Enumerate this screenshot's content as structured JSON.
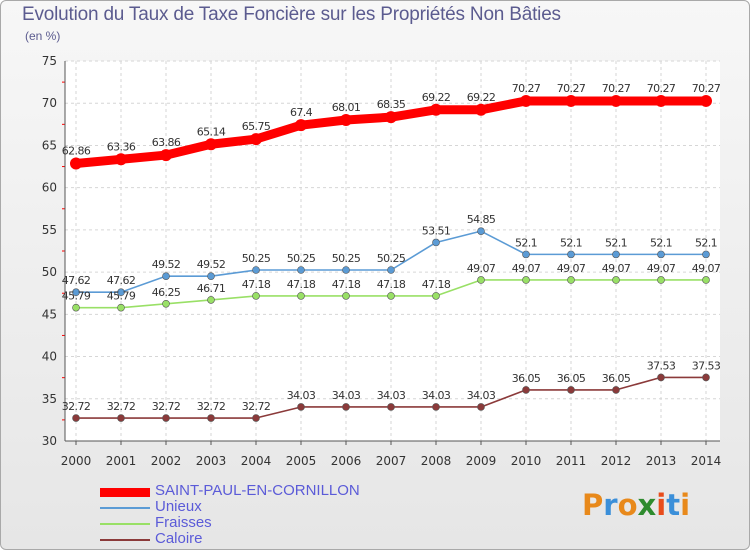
{
  "title": "Evolution du Taux de Taxe Foncière sur les Propriétés Non Bâties",
  "subtitle": "(en %)",
  "logo": {
    "text": "Proxiti",
    "colors": [
      "#e8891b",
      "#3b8fd9",
      "#e8891b",
      "#2e8b2e",
      "#e84c1b",
      "#3b8fd9",
      "#e8891b"
    ]
  },
  "chart_data": {
    "type": "line",
    "x": [
      "2000",
      "2001",
      "2002",
      "2003",
      "2004",
      "2005",
      "2006",
      "2007",
      "2008",
      "2009",
      "2010",
      "2011",
      "2012",
      "2013",
      "2014"
    ],
    "ylim": [
      30,
      75
    ],
    "yticks": [
      "30",
      "35",
      "40",
      "45",
      "50",
      "55",
      "60",
      "65",
      "70",
      "75"
    ],
    "grid": true,
    "legend": "bottom-left",
    "series": [
      {
        "name": "SAINT-PAUL-EN-CORNILLON",
        "color": "#ff0000",
        "values": [
          62.86,
          63.36,
          63.86,
          65.14,
          65.75,
          67.4,
          68.01,
          68.35,
          69.22,
          69.22,
          70.27,
          70.27,
          70.27,
          70.27,
          70.27
        ],
        "labels": [
          "62.86",
          "63.36",
          "63.86",
          "65.14",
          "65.75",
          "67.4",
          "68.01",
          "68.35",
          "69.22",
          "69.22",
          "70.27",
          "70.27",
          "70.27",
          "70.27",
          "70.27"
        ]
      },
      {
        "name": "Unieux",
        "color": "#5b9bd5",
        "values": [
          47.62,
          47.62,
          49.52,
          49.52,
          50.25,
          50.25,
          50.25,
          50.25,
          53.51,
          54.85,
          52.1,
          52.1,
          52.1,
          52.1,
          52.1
        ],
        "labels": [
          "47.62",
          "47.62",
          "49.52",
          "49.52",
          "50.25",
          "50.25",
          "50.25",
          "50.25",
          "53.51",
          "54.85",
          "52.1",
          "52.1",
          "52.1",
          "52.1",
          "52.1"
        ]
      },
      {
        "name": "Fraisses",
        "color": "#99e066",
        "values": [
          45.79,
          45.79,
          46.25,
          46.71,
          47.18,
          47.18,
          47.18,
          47.18,
          47.18,
          49.07,
          49.07,
          49.07,
          49.07,
          49.07,
          49.07
        ],
        "labels": [
          "45.79",
          "45.79",
          "46.25",
          "46.71",
          "47.18",
          "47.18",
          "47.18",
          "47.18",
          "47.18",
          "49.07",
          "49.07",
          "49.07",
          "49.07",
          "49.07",
          "49.07"
        ]
      },
      {
        "name": "Caloire",
        "color": "#8b3a3a",
        "values": [
          32.72,
          32.72,
          32.72,
          32.72,
          32.72,
          34.03,
          34.03,
          34.03,
          34.03,
          34.03,
          36.05,
          36.05,
          36.05,
          37.53,
          37.53
        ],
        "labels": [
          "32.72",
          "32.72",
          "32.72",
          "32.72",
          "32.72",
          "34.03",
          "34.03",
          "34.03",
          "34.03",
          "34.03",
          "36.05",
          "36.05",
          "36.05",
          "37.53",
          "37.53"
        ]
      }
    ]
  }
}
